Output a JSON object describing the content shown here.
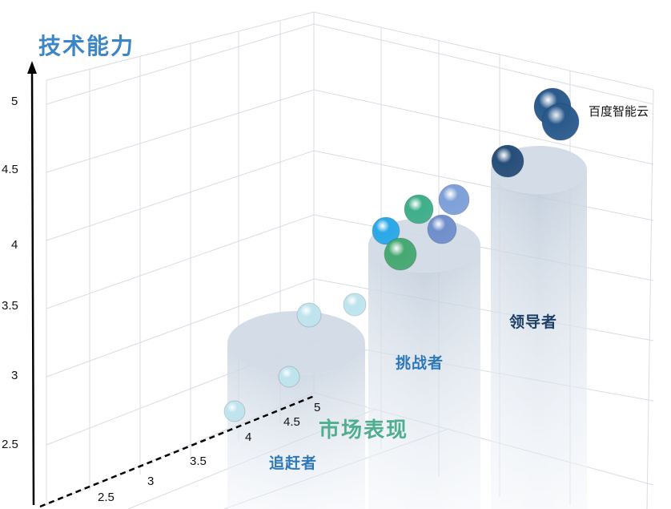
{
  "chart_data": {
    "type": "scatter",
    "title": "",
    "ylabel": "技术能力",
    "xlabel": "市场表现",
    "y_ticks": [
      "2.5",
      "3",
      "3.5",
      "4",
      "4.5",
      "5"
    ],
    "x_ticks": [
      "2.5",
      "3",
      "3.5",
      "4",
      "4.5",
      "5"
    ],
    "ylim": [
      2,
      5.3
    ],
    "grid": true,
    "tiers": [
      {
        "name": "追赶者",
        "color": "#2e78b8"
      },
      {
        "name": "挑战者",
        "color": "#2e78b8"
      },
      {
        "name": "领导者",
        "color": "#1d3f66"
      }
    ],
    "points": [
      {
        "label": "百度智能云",
        "tier": "领导者",
        "y": 4.95,
        "color": "#2a5a8c"
      },
      {
        "label": "",
        "tier": "领导者",
        "y": 4.85,
        "color": "#2a5a8c"
      },
      {
        "label": "",
        "tier": "领导者",
        "y": 4.55,
        "color": "#274e7a"
      },
      {
        "label": "",
        "tier": "挑战者",
        "y": 4.3,
        "color": "#7e9fd8"
      },
      {
        "label": "",
        "tier": "挑战者",
        "y": 4.2,
        "color": "#3fae8a"
      },
      {
        "label": "",
        "tier": "挑战者",
        "y": 4.1,
        "color": "#6f8fcc"
      },
      {
        "label": "",
        "tier": "挑战者",
        "y": 4.05,
        "color": "#2aa8e8"
      },
      {
        "label": "",
        "tier": "挑战者",
        "y": 3.9,
        "color": "#46a872"
      },
      {
        "label": "",
        "tier": "追赶者",
        "y": 3.5,
        "color": "#bfe4ee"
      },
      {
        "label": "",
        "tier": "追赶者",
        "y": 3.45,
        "color": "#bfe4ee"
      },
      {
        "label": "",
        "tier": "追赶者",
        "y": 3.0,
        "color": "#bfe4ee"
      },
      {
        "label": "",
        "tier": "追赶者",
        "y": 2.75,
        "color": "#bfe4ee"
      }
    ]
  }
}
